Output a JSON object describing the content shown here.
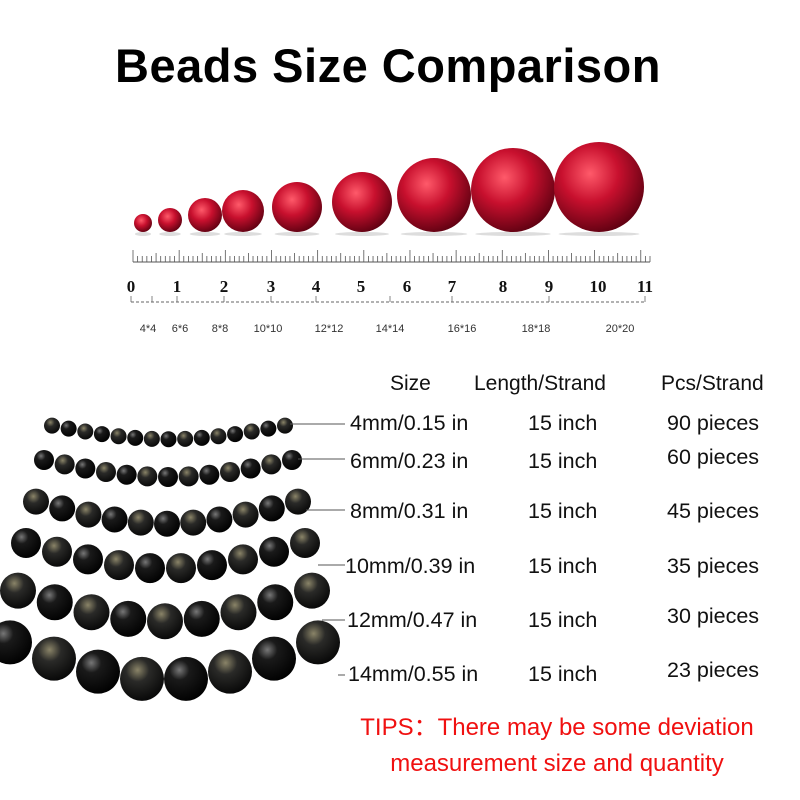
{
  "title": "Beads Size Comparison",
  "ruler": {
    "numbers": [
      "0",
      "1",
      "2",
      "3",
      "4",
      "5",
      "6",
      "7",
      "8",
      "9",
      "10",
      "11"
    ],
    "size_labels": [
      "4*4",
      "6*6",
      "8*8",
      "10*10",
      "12*12",
      "14*14",
      "16*16",
      "18*18",
      "20*20"
    ]
  },
  "bead_color": "#c8102e",
  "table": {
    "headers": {
      "size": "Size",
      "length": "Length/Strand",
      "pcs": "Pcs/Strand"
    },
    "rows": [
      {
        "size": "4mm/0.15 in",
        "length": "15 inch",
        "pcs": "90 pieces"
      },
      {
        "size": "6mm/0.23 in",
        "length": "15 inch",
        "pcs": "60 pieces"
      },
      {
        "size": "8mm/0.31 in",
        "length": "15 inch",
        "pcs": "45 pieces"
      },
      {
        "size": "10mm/0.39 in",
        "length": "15 inch",
        "pcs": "35 pieces"
      },
      {
        "size": "12mm/0.47 in",
        "length": "15 inch",
        "pcs": "30 pieces"
      },
      {
        "size": "14mm/0.55 in",
        "length": "15 inch",
        "pcs": "23 pieces"
      }
    ]
  },
  "tips": {
    "line1": "TIPS：There may be some deviation",
    "line2": "measurement size and quantity",
    "color": "#f01010"
  }
}
